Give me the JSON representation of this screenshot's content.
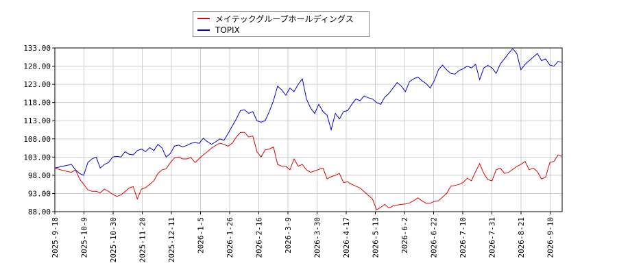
{
  "chart_data": {
    "type": "line",
    "title": "",
    "xlabel": "",
    "ylabel": "",
    "ylim": [
      88,
      133
    ],
    "y_ticks": [
      "88.00",
      "93.00",
      "98.00",
      "103.00",
      "108.00",
      "113.00",
      "118.00",
      "123.00",
      "128.00",
      "133.00"
    ],
    "x_ticks": [
      "2025-9-18",
      "2025-10-9",
      "2025-10-30",
      "2025-11-20",
      "2025-12-11",
      "2026-1-5",
      "2026-1-26",
      "2026-2-16",
      "2026-3-9",
      "2026-3-30",
      "2026-4-17",
      "2026-5-13",
      "2026-6-2",
      "2026-6-22",
      "2026-7-10",
      "2026-7-31",
      "2026-8-21",
      "2026-9-10"
    ],
    "grid": true,
    "legend_position": "top-center",
    "series": [
      {
        "name": "メイテックグループホールディングス",
        "color": "#dd0000",
        "values": [
          [
            0,
            100.0
          ],
          [
            2,
            99.3
          ],
          [
            4,
            98.8
          ],
          [
            5,
            99.5
          ],
          [
            6,
            97.0
          ],
          [
            7,
            95.5
          ],
          [
            8,
            94.0
          ],
          [
            9,
            93.6
          ],
          [
            10,
            93.6
          ],
          [
            11,
            93.2
          ],
          [
            12,
            94.2
          ],
          [
            13,
            93.6
          ],
          [
            14,
            92.8
          ],
          [
            15,
            92.2
          ],
          [
            16,
            92.6
          ],
          [
            17,
            93.5
          ],
          [
            18,
            94.5
          ],
          [
            19,
            94.9
          ],
          [
            20,
            91.5
          ],
          [
            21,
            94.2
          ],
          [
            22,
            94.6
          ],
          [
            23,
            95.5
          ],
          [
            24,
            96.5
          ],
          [
            25,
            98.5
          ],
          [
            26,
            99.5
          ],
          [
            27,
            99.8
          ],
          [
            28,
            101.5
          ],
          [
            29,
            102.8
          ],
          [
            30,
            103.0
          ],
          [
            31,
            102.5
          ],
          [
            32,
            102.5
          ],
          [
            33,
            102.9
          ],
          [
            34,
            101.5
          ],
          [
            35,
            102.6
          ],
          [
            36,
            103.6
          ],
          [
            37,
            104.5
          ],
          [
            38,
            105.5
          ],
          [
            39,
            106.2
          ],
          [
            40,
            106.8
          ],
          [
            41,
            106.5
          ],
          [
            42,
            106.0
          ],
          [
            43,
            106.8
          ],
          [
            44,
            108.5
          ],
          [
            45,
            109.8
          ],
          [
            46,
            109.8
          ],
          [
            47,
            108.5
          ],
          [
            48,
            108.8
          ],
          [
            49,
            104.5
          ],
          [
            50,
            103.0
          ],
          [
            51,
            105.0
          ],
          [
            52,
            105.2
          ],
          [
            53,
            105.8
          ],
          [
            54,
            101.0
          ],
          [
            55,
            100.5
          ],
          [
            56,
            100.5
          ],
          [
            57,
            99.5
          ],
          [
            58,
            102.5
          ],
          [
            59,
            100.5
          ],
          [
            60,
            101.0
          ],
          [
            61,
            99.5
          ],
          [
            62,
            98.8
          ],
          [
            63,
            99.2
          ],
          [
            64,
            99.6
          ],
          [
            65,
            100.0
          ],
          [
            66,
            97.0
          ],
          [
            67,
            97.6
          ],
          [
            68,
            98.0
          ],
          [
            69,
            98.5
          ],
          [
            70,
            96.0
          ],
          [
            71,
            96.2
          ],
          [
            72,
            95.5
          ],
          [
            73,
            95.0
          ],
          [
            74,
            94.5
          ],
          [
            75,
            93.5
          ],
          [
            76,
            92.5
          ],
          [
            77,
            91.5
          ],
          [
            78,
            88.5
          ],
          [
            79,
            89.2
          ],
          [
            80,
            90.0
          ],
          [
            81,
            89.0
          ],
          [
            82,
            89.6
          ],
          [
            83,
            89.8
          ],
          [
            84,
            90.0
          ],
          [
            85,
            90.1
          ],
          [
            86,
            90.4
          ],
          [
            87,
            91.0
          ],
          [
            88,
            91.8
          ],
          [
            89,
            91.0
          ],
          [
            90,
            90.3
          ],
          [
            91,
            90.3
          ],
          [
            92,
            90.8
          ],
          [
            93,
            91.0
          ],
          [
            94,
            92.0
          ],
          [
            95,
            93.0
          ],
          [
            96,
            95.0
          ],
          [
            97,
            95.2
          ],
          [
            98,
            95.5
          ],
          [
            99,
            96.0
          ],
          [
            100,
            97.2
          ],
          [
            101,
            96.5
          ],
          [
            102,
            99.0
          ],
          [
            103,
            101.2
          ],
          [
            104,
            98.5
          ],
          [
            105,
            96.8
          ],
          [
            106,
            96.5
          ],
          [
            107,
            99.5
          ],
          [
            108,
            100.0
          ],
          [
            109,
            98.5
          ],
          [
            110,
            98.8
          ],
          [
            111,
            99.6
          ],
          [
            112,
            100.4
          ],
          [
            113,
            101.0
          ],
          [
            114,
            101.8
          ],
          [
            115,
            99.5
          ],
          [
            116,
            100.0
          ],
          [
            117,
            99.0
          ],
          [
            118,
            97.0
          ],
          [
            119,
            97.5
          ],
          [
            120,
            101.5
          ],
          [
            121,
            101.8
          ],
          [
            122,
            103.6
          ],
          [
            123,
            103.2
          ]
        ]
      },
      {
        "name": "TOPIX",
        "color": "#0000cc",
        "values": [
          [
            0,
            100.0
          ],
          [
            2,
            100.5
          ],
          [
            4,
            101.0
          ],
          [
            5,
            99.5
          ],
          [
            6,
            98.5
          ],
          [
            7,
            98.0
          ],
          [
            8,
            101.5
          ],
          [
            9,
            102.5
          ],
          [
            10,
            103.0
          ],
          [
            11,
            100.0
          ],
          [
            12,
            101.0
          ],
          [
            13,
            101.5
          ],
          [
            14,
            103.0
          ],
          [
            15,
            103.2
          ],
          [
            16,
            103.0
          ],
          [
            17,
            104.5
          ],
          [
            18,
            103.8
          ],
          [
            19,
            103.6
          ],
          [
            20,
            104.8
          ],
          [
            21,
            105.2
          ],
          [
            22,
            104.5
          ],
          [
            23,
            105.6
          ],
          [
            24,
            104.8
          ],
          [
            25,
            106.5
          ],
          [
            26,
            105.5
          ],
          [
            27,
            103.0
          ],
          [
            28,
            104.0
          ],
          [
            29,
            106.0
          ],
          [
            30,
            106.3
          ],
          [
            31,
            105.8
          ],
          [
            32,
            106.2
          ],
          [
            33,
            106.8
          ],
          [
            34,
            107.0
          ],
          [
            35,
            106.8
          ],
          [
            36,
            108.2
          ],
          [
            37,
            107.2
          ],
          [
            38,
            106.5
          ],
          [
            39,
            107.2
          ],
          [
            40,
            108.0
          ],
          [
            41,
            107.6
          ],
          [
            42,
            109.5
          ],
          [
            43,
            111.5
          ],
          [
            44,
            113.5
          ],
          [
            45,
            115.8
          ],
          [
            46,
            116.0
          ],
          [
            47,
            115.0
          ],
          [
            48,
            115.5
          ],
          [
            49,
            113.0
          ],
          [
            50,
            112.6
          ],
          [
            51,
            113.0
          ],
          [
            52,
            115.5
          ],
          [
            53,
            118.5
          ],
          [
            54,
            122.5
          ],
          [
            55,
            121.5
          ],
          [
            56,
            120.0
          ],
          [
            57,
            122.0
          ],
          [
            58,
            121.0
          ],
          [
            59,
            123.0
          ],
          [
            60,
            124.5
          ],
          [
            61,
            119.0
          ],
          [
            62,
            116.5
          ],
          [
            63,
            115.0
          ],
          [
            64,
            117.5
          ],
          [
            65,
            115.5
          ],
          [
            66,
            114.5
          ],
          [
            67,
            110.5
          ],
          [
            68,
            115.0
          ],
          [
            69,
            113.5
          ],
          [
            70,
            115.5
          ],
          [
            71,
            115.8
          ],
          [
            72,
            117.5
          ],
          [
            73,
            119.0
          ],
          [
            74,
            118.5
          ],
          [
            75,
            119.8
          ],
          [
            76,
            119.3
          ],
          [
            77,
            119.0
          ],
          [
            78,
            118.0
          ],
          [
            79,
            117.5
          ],
          [
            80,
            119.5
          ],
          [
            81,
            120.5
          ],
          [
            82,
            122.0
          ],
          [
            83,
            123.5
          ],
          [
            84,
            122.5
          ],
          [
            85,
            121.0
          ],
          [
            86,
            123.8
          ],
          [
            87,
            124.5
          ],
          [
            88,
            125.0
          ],
          [
            89,
            124.0
          ],
          [
            90,
            123.2
          ],
          [
            91,
            122.0
          ],
          [
            92,
            124.0
          ],
          [
            93,
            127.0
          ],
          [
            94,
            128.3
          ],
          [
            95,
            127.0
          ],
          [
            96,
            126.0
          ],
          [
            97,
            125.8
          ],
          [
            98,
            126.8
          ],
          [
            99,
            127.3
          ],
          [
            100,
            128.0
          ],
          [
            101,
            127.5
          ],
          [
            102,
            128.5
          ],
          [
            103,
            124.3
          ],
          [
            104,
            127.5
          ],
          [
            105,
            128.2
          ],
          [
            106,
            127.5
          ],
          [
            107,
            126.0
          ],
          [
            108,
            128.6
          ],
          [
            109,
            130.0
          ],
          [
            110,
            131.5
          ],
          [
            111,
            132.8
          ],
          [
            112,
            131.5
          ],
          [
            113,
            127.0
          ],
          [
            114,
            128.5
          ],
          [
            115,
            129.5
          ],
          [
            116,
            130.5
          ],
          [
            117,
            131.5
          ],
          [
            118,
            129.5
          ],
          [
            119,
            130.0
          ],
          [
            120,
            128.3
          ],
          [
            121,
            128.0
          ],
          [
            122,
            129.3
          ],
          [
            123,
            129.0
          ]
        ]
      }
    ]
  }
}
